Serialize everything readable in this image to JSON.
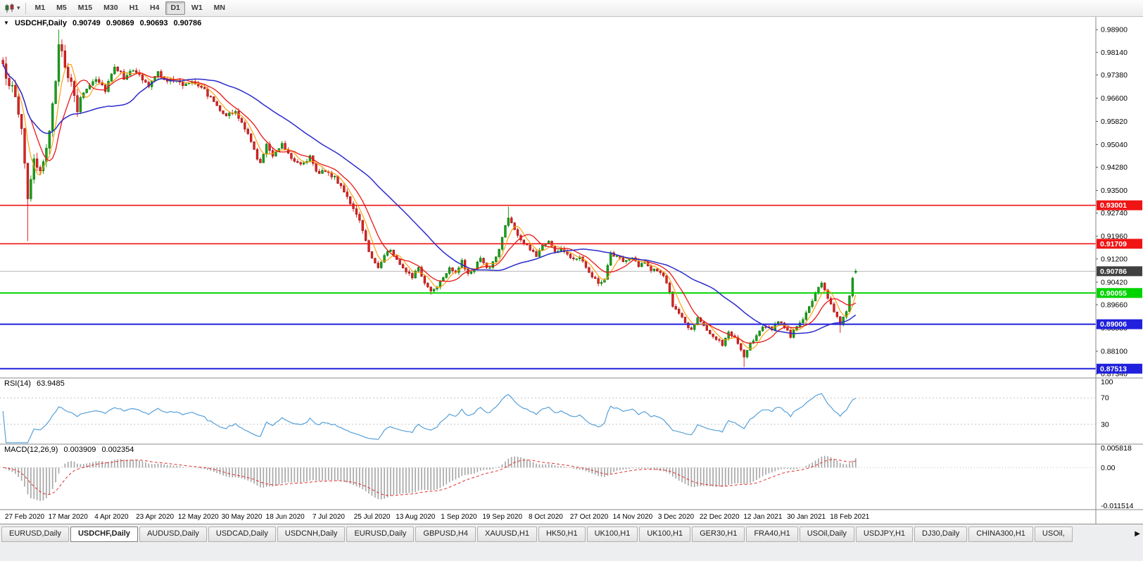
{
  "icons": {
    "toolbar_caret": "▾",
    "legend_marker": "▼",
    "tab_scroll_right": "▶"
  },
  "toolbar": {
    "timeframes": [
      {
        "label": "M1",
        "active": false
      },
      {
        "label": "M5",
        "active": false
      },
      {
        "label": "M15",
        "active": false
      },
      {
        "label": "M30",
        "active": false
      },
      {
        "label": "H1",
        "active": false
      },
      {
        "label": "H4",
        "active": false
      },
      {
        "label": "D1",
        "active": true
      },
      {
        "label": "W1",
        "active": false
      },
      {
        "label": "MN",
        "active": false
      }
    ]
  },
  "legend": {
    "symbol": "USDCHF,Daily",
    "open": "0.90749",
    "high": "0.90869",
    "low": "0.90693",
    "close": "0.90786"
  },
  "rsi_header": {
    "name": "RSI(14)",
    "value": "63.9485"
  },
  "macd_header": {
    "name": "MACD(12,26,9)",
    "value1": "0.003909",
    "value2": "0.002354"
  },
  "tabs": [
    {
      "label": "EURUSD,Daily",
      "active": false
    },
    {
      "label": "USDCHF,Daily",
      "active": true
    },
    {
      "label": "AUDUSD,Daily",
      "active": false
    },
    {
      "label": "USDCAD,Daily",
      "active": false
    },
    {
      "label": "USDCNH,Daily",
      "active": false
    },
    {
      "label": "EURUSD,Daily",
      "active": false
    },
    {
      "label": "GBPUSD,H4",
      "active": false
    },
    {
      "label": "XAUUSD,H1",
      "active": false
    },
    {
      "label": "HK50,H1",
      "active": false
    },
    {
      "label": "UK100,H1",
      "active": false
    },
    {
      "label": "UK100,H1",
      "active": false
    },
    {
      "label": "GER30,H1",
      "active": false
    },
    {
      "label": "FRA40,H1",
      "active": false
    },
    {
      "label": "USOil,Daily",
      "active": false
    },
    {
      "label": "USDJPY,H1",
      "active": false
    },
    {
      "label": "DJ30,Daily",
      "active": false
    },
    {
      "label": "CHINA300,H1",
      "active": false
    },
    {
      "label": "USOil,",
      "active": false
    }
  ],
  "chart_data": {
    "type": "candlestick",
    "symbol": "USDCHF",
    "timeframe": "Daily",
    "ohlc_current": {
      "open": 0.90749,
      "high": 0.90869,
      "low": 0.90693,
      "close": 0.90786
    },
    "current_price": 0.90786,
    "current_price_label": "0.90786",
    "current_price_box_color": "#404040",
    "n_candles": 276,
    "price_range_plot": [
      0.872,
      0.9933
    ],
    "price_axis_ticks": [
      "0.98900",
      "0.98140",
      "0.97380",
      "0.96600",
      "0.95820",
      "0.95040",
      "0.94280",
      "0.93500",
      "0.92740",
      "0.91960",
      "0.91200",
      "0.90420",
      "0.89660",
      "0.88880",
      "0.88100",
      "0.87340"
    ],
    "x_labels": [
      "27 Feb 2020",
      "17 Mar 2020",
      "4 Apr 2020",
      "23 Apr 2020",
      "12 May 2020",
      "30 May 2020",
      "18 Jun 2020",
      "7 Jul 2020",
      "25 Jul 2020",
      "13 Aug 2020",
      "1 Sep 2020",
      "19 Sep 2020",
      "8 Oct 2020",
      "27 Oct 2020",
      "14 Nov 2020",
      "3 Dec 2020",
      "22 Dec 2020",
      "12 Jan 2021",
      "30 Jan 2021",
      "18 Feb 2021"
    ],
    "horizontal_levels": [
      {
        "label": "0.93001",
        "value": 0.93001,
        "color": "#f01414",
        "width": 1.7
      },
      {
        "label": "0.91709",
        "value": 0.91709,
        "color": "#f01414",
        "width": 1.7
      },
      {
        "label": "0.90055",
        "value": 0.90055,
        "color": "#00d400",
        "width": 2
      },
      {
        "label": "0.89006",
        "value": 0.89006,
        "color": "#2020dd",
        "width": 2
      },
      {
        "label": "0.87513",
        "value": 0.87513,
        "color": "#2020dd",
        "width": 2
      }
    ],
    "moving_averages": [
      {
        "name": "MA-fast",
        "period": 5,
        "color": "#ff9900",
        "width": 1.1
      },
      {
        "name": "MA-mid",
        "period": 10,
        "color": "#e81717",
        "width": 1.3
      },
      {
        "name": "MA-slow",
        "period": 35,
        "color": "#2b2bcc",
        "width": 1.5
      }
    ],
    "anchors_close": [
      [
        0,
        0.976
      ],
      [
        2,
        0.9718
      ],
      [
        4,
        0.966
      ],
      [
        6,
        0.956
      ],
      [
        8,
        0.933
      ],
      [
        10,
        0.944
      ],
      [
        12,
        0.94
      ],
      [
        15,
        0.956
      ],
      [
        17,
        0.97
      ],
      [
        18,
        0.985
      ],
      [
        19,
        0.982
      ],
      [
        20,
        0.978
      ],
      [
        22,
        0.97
      ],
      [
        24,
        0.962
      ],
      [
        26,
        0.968
      ],
      [
        30,
        0.973
      ],
      [
        33,
        0.969
      ],
      [
        36,
        0.977
      ],
      [
        39,
        0.973
      ],
      [
        41,
        0.9755
      ],
      [
        44,
        0.9735
      ],
      [
        47,
        0.97
      ],
      [
        50,
        0.9745
      ],
      [
        53,
        0.972
      ],
      [
        56,
        0.9718
      ],
      [
        58,
        0.9705
      ],
      [
        61,
        0.972
      ],
      [
        64,
        0.97
      ],
      [
        67,
        0.966
      ],
      [
        70,
        0.9625
      ],
      [
        72,
        0.9605
      ],
      [
        75,
        0.961
      ],
      [
        78,
        0.956
      ],
      [
        81,
        0.9485
      ],
      [
        83,
        0.944
      ],
      [
        85,
        0.95
      ],
      [
        87,
        0.9472
      ],
      [
        90,
        0.9508
      ],
      [
        93,
        0.9462
      ],
      [
        96,
        0.944
      ],
      [
        99,
        0.9462
      ],
      [
        101,
        0.9408
      ],
      [
        104,
        0.942
      ],
      [
        107,
        0.939
      ],
      [
        110,
        0.9352
      ],
      [
        112,
        0.931
      ],
      [
        115,
        0.9242
      ],
      [
        117,
        0.918
      ],
      [
        119,
        0.912
      ],
      [
        121,
        0.9092
      ],
      [
        123,
        0.9135
      ],
      [
        125,
        0.915
      ],
      [
        127,
        0.9115
      ],
      [
        130,
        0.9082
      ],
      [
        132,
        0.9062
      ],
      [
        134,
        0.9088
      ],
      [
        136,
        0.904
      ],
      [
        138,
        0.9012
      ],
      [
        140,
        0.903
      ],
      [
        142,
        0.9062
      ],
      [
        144,
        0.9092
      ],
      [
        146,
        0.9076
      ],
      [
        148,
        0.911
      ],
      [
        150,
        0.9066
      ],
      [
        152,
        0.909
      ],
      [
        154,
        0.9122
      ],
      [
        156,
        0.9086
      ],
      [
        158,
        0.9106
      ],
      [
        160,
        0.9152
      ],
      [
        162,
        0.9232
      ],
      [
        163,
        0.9262
      ],
      [
        165,
        0.9216
      ],
      [
        167,
        0.9182
      ],
      [
        169,
        0.9162
      ],
      [
        172,
        0.9132
      ],
      [
        174,
        0.9166
      ],
      [
        176,
        0.9182
      ],
      [
        178,
        0.9142
      ],
      [
        180,
        0.9156
      ],
      [
        182,
        0.9132
      ],
      [
        184,
        0.9122
      ],
      [
        186,
        0.913
      ],
      [
        188,
        0.9096
      ],
      [
        190,
        0.9062
      ],
      [
        192,
        0.904
      ],
      [
        194,
        0.9052
      ],
      [
        196,
        0.914
      ],
      [
        198,
        0.9126
      ],
      [
        201,
        0.9112
      ],
      [
        203,
        0.9122
      ],
      [
        205,
        0.9096
      ],
      [
        207,
        0.9106
      ],
      [
        209,
        0.9086
      ],
      [
        211,
        0.9082
      ],
      [
        213,
        0.9062
      ],
      [
        215,
        0.901
      ],
      [
        216,
        0.8962
      ],
      [
        218,
        0.8932
      ],
      [
        220,
        0.8906
      ],
      [
        222,
        0.8882
      ],
      [
        224,
        0.8926
      ],
      [
        226,
        0.8892
      ],
      [
        228,
        0.8862
      ],
      [
        230,
        0.8852
      ],
      [
        232,
        0.8832
      ],
      [
        234,
        0.8872
      ],
      [
        236,
        0.8856
      ],
      [
        239,
        0.879
      ],
      [
        241,
        0.8832
      ],
      [
        244,
        0.8882
      ],
      [
        246,
        0.8896
      ],
      [
        248,
        0.8886
      ],
      [
        250,
        0.8906
      ],
      [
        252,
        0.8892
      ],
      [
        254,
        0.8862
      ],
      [
        256,
        0.8892
      ],
      [
        258,
        0.8912
      ],
      [
        260,
        0.8962
      ],
      [
        262,
        0.9002
      ],
      [
        264,
        0.9042
      ],
      [
        266,
        0.8992
      ],
      [
        268,
        0.8946
      ],
      [
        270,
        0.8902
      ],
      [
        272,
        0.8946
      ],
      [
        273,
        0.9
      ],
      [
        274,
        0.9058
      ],
      [
        275,
        0.90786
      ]
    ],
    "overrides": {
      "8": {
        "low": 0.918
      },
      "18": {
        "high": 0.989
      },
      "138": {
        "low": 0.9
      },
      "163": {
        "high": 0.9296
      },
      "192": {
        "low": 0.9028
      },
      "239": {
        "low": 0.8757
      },
      "264": {
        "high": 0.9046
      },
      "270": {
        "low": 0.8872
      },
      "275": {
        "open": 0.90749,
        "high": 0.90869,
        "low": 0.90693,
        "close": 0.90786
      }
    },
    "indicators": {
      "rsi": {
        "name": "RSI(14)",
        "value": 63.9485,
        "range": [
          0,
          100
        ],
        "levels": [
          70,
          30
        ],
        "color": "#56a0d9",
        "axis_labels": [
          "100",
          "70",
          "30"
        ]
      },
      "macd": {
        "name": "MACD(12,26,9)",
        "macd_value": 0.003909,
        "signal_value": 0.002354,
        "plot_range": [
          -0.0122,
          0.0068
        ],
        "axis_labels": [
          {
            "label": "0.005818",
            "value": 0.005818
          },
          {
            "label": "0.00",
            "value": 0.0
          },
          {
            "label": "-0.011514",
            "value": -0.011514
          }
        ],
        "histogram_color": "#a8a8a8",
        "signal_color": "#e03030"
      }
    },
    "candle_colors": {
      "up": "#17a317",
      "up_border": "#0c6e0c",
      "down": "#e32222",
      "down_border": "#8d1414"
    }
  }
}
